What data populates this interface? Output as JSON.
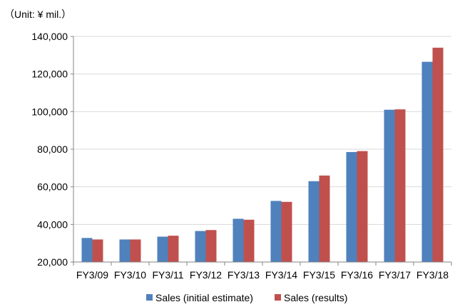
{
  "chart_data": {
    "type": "bar",
    "unit_label": "（Unit: ¥ mil.）",
    "categories": [
      "FY3/09",
      "FY3/10",
      "FY3/11",
      "FY3/12",
      "FY3/13",
      "FY3/14",
      "FY3/15",
      "FY3/16",
      "FY3/17",
      "FY3/18"
    ],
    "series": [
      {
        "name": "Sales (initial estimate)",
        "color": "#4f81bd",
        "values": [
          32800,
          32000,
          33500,
          36500,
          43000,
          52500,
          63000,
          78500,
          101000,
          126500
        ]
      },
      {
        "name": "Sales (results)",
        "color": "#c0504d",
        "values": [
          32000,
          32000,
          34000,
          37000,
          42500,
          52000,
          66000,
          79000,
          101200,
          134000
        ]
      }
    ],
    "ylim": [
      20000,
      140000
    ],
    "yticks": [
      "20,000",
      "40,000",
      "60,000",
      "80,000",
      "100,000",
      "120,000",
      "140,000"
    ],
    "ytick_values": [
      20000,
      40000,
      60000,
      80000,
      100000,
      120000,
      140000
    ],
    "grid": true,
    "legend": "bottom-center"
  }
}
